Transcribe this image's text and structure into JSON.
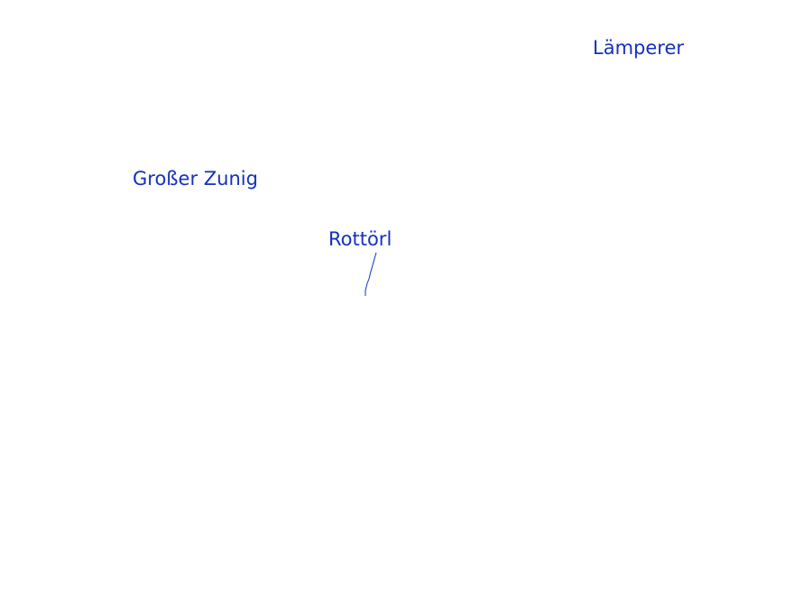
{
  "map": {
    "label_color": "#1530c0",
    "labels": [
      {
        "text": "Lämperer"
      },
      {
        "text": "Großer Zunig"
      },
      {
        "text": "Rottörl"
      }
    ],
    "features": [
      {
        "type": "trail-line"
      }
    ]
  }
}
